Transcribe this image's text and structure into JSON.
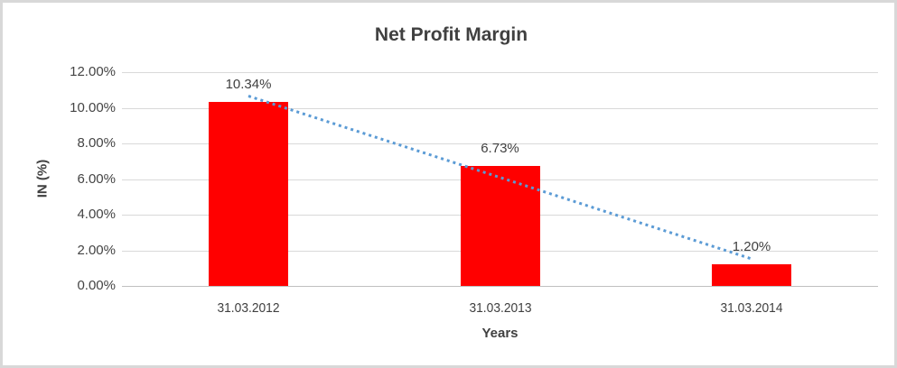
{
  "chart": {
    "title": "Net Profit Margin",
    "y_axis_title": "IN (%)",
    "x_axis_title": "Years",
    "colors": {
      "bar": "#FF0000",
      "trendline": "#5B9BD5",
      "gridline": "#D9D9D9",
      "axis_line": "#C0C0C0",
      "text": "#404040",
      "border": "#D8D8D8",
      "background": "#FFFFFF"
    }
  },
  "chart_data": {
    "type": "bar",
    "title": "Net Profit Margin",
    "xlabel": "Years",
    "ylabel": "IN (%)",
    "categories": [
      "31.03.2012",
      "31.03.2013",
      "31.03.2014"
    ],
    "values": [
      10.34,
      6.73,
      1.2
    ],
    "data_labels": [
      "10.34%",
      "6.73%",
      "1.20%"
    ],
    "y_ticks": [
      {
        "value": 12,
        "label": "12.00%"
      },
      {
        "value": 10,
        "label": "10.00%"
      },
      {
        "value": 8,
        "label": "8.00%"
      },
      {
        "value": 6,
        "label": "6.00%"
      },
      {
        "value": 4,
        "label": "4.00%"
      },
      {
        "value": 2,
        "label": "2.00%"
      },
      {
        "value": 0,
        "label": "0.00%"
      }
    ],
    "ylim": [
      0,
      12
    ],
    "grid": true,
    "legend": "none",
    "trendline": {
      "style": "dotted",
      "color": "#5B9BD5",
      "start_pct": 10.66,
      "end_pct": 1.52
    }
  }
}
